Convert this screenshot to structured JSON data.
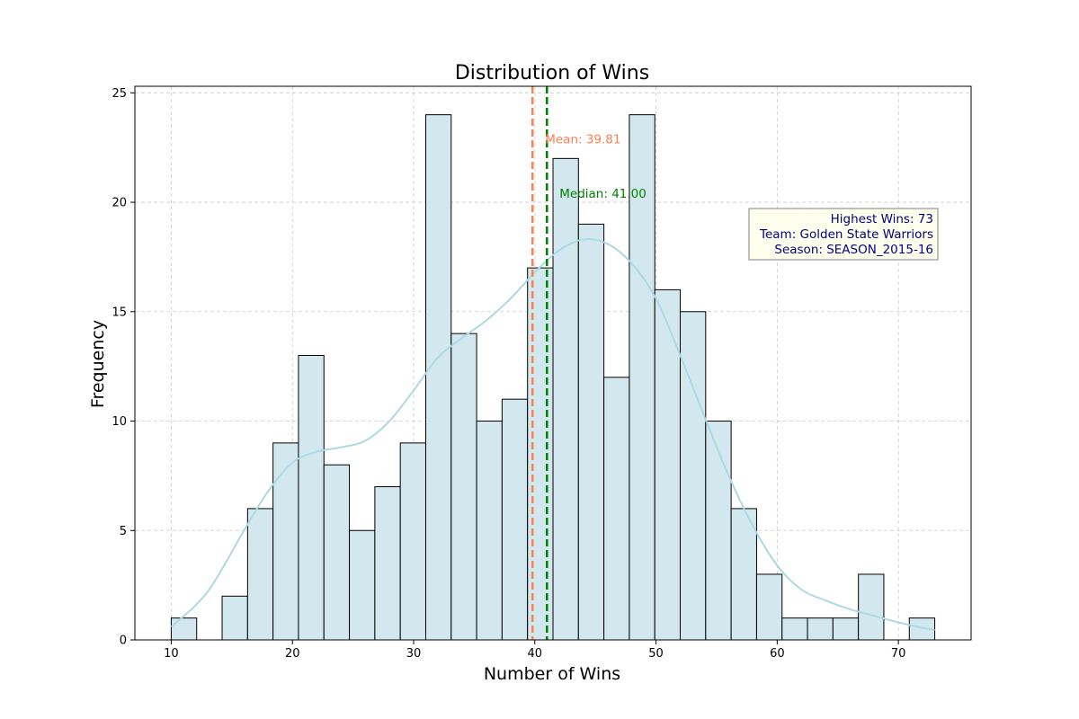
{
  "chart_data": {
    "type": "bar",
    "title": "Distribution of Wins",
    "xlabel": "Number of Wins",
    "ylabel": "Frequency",
    "xlim": [
      7,
      76
    ],
    "ylim": [
      0,
      25.3
    ],
    "xticks": [
      10,
      20,
      30,
      40,
      50,
      60,
      70
    ],
    "yticks": [
      0,
      5,
      10,
      15,
      20,
      25
    ],
    "grid": true,
    "bin_start": 10,
    "bin_width": 2.1,
    "bins": [
      {
        "x0": 10.0,
        "x1": 12.1,
        "count": 1
      },
      {
        "x0": 12.1,
        "x1": 14.2,
        "count": 0
      },
      {
        "x0": 14.2,
        "x1": 16.3,
        "count": 2
      },
      {
        "x0": 16.3,
        "x1": 18.4,
        "count": 6
      },
      {
        "x0": 18.4,
        "x1": 20.5,
        "count": 9
      },
      {
        "x0": 20.5,
        "x1": 22.6,
        "count": 13
      },
      {
        "x0": 22.6,
        "x1": 24.7,
        "count": 8
      },
      {
        "x0": 24.7,
        "x1": 26.8,
        "count": 5
      },
      {
        "x0": 26.8,
        "x1": 28.9,
        "count": 7
      },
      {
        "x0": 28.9,
        "x1": 31.0,
        "count": 9
      },
      {
        "x0": 31.0,
        "x1": 33.1,
        "count": 24
      },
      {
        "x0": 33.1,
        "x1": 35.2,
        "count": 14
      },
      {
        "x0": 35.2,
        "x1": 37.3,
        "count": 10
      },
      {
        "x0": 37.3,
        "x1": 39.4,
        "count": 11
      },
      {
        "x0": 39.4,
        "x1": 41.5,
        "count": 17
      },
      {
        "x0": 41.5,
        "x1": 43.6,
        "count": 22
      },
      {
        "x0": 43.6,
        "x1": 45.7,
        "count": 19
      },
      {
        "x0": 45.7,
        "x1": 47.8,
        "count": 12
      },
      {
        "x0": 47.8,
        "x1": 49.9,
        "count": 24
      },
      {
        "x0": 49.9,
        "x1": 52.0,
        "count": 16
      },
      {
        "x0": 52.0,
        "x1": 54.1,
        "count": 15
      },
      {
        "x0": 54.1,
        "x1": 56.2,
        "count": 10
      },
      {
        "x0": 56.2,
        "x1": 58.3,
        "count": 6
      },
      {
        "x0": 58.3,
        "x1": 60.4,
        "count": 3
      },
      {
        "x0": 60.4,
        "x1": 62.5,
        "count": 1
      },
      {
        "x0": 62.5,
        "x1": 64.6,
        "count": 1
      },
      {
        "x0": 64.6,
        "x1": 66.7,
        "count": 1
      },
      {
        "x0": 66.7,
        "x1": 68.8,
        "count": 3
      },
      {
        "x0": 68.8,
        "x1": 70.9,
        "count": 0
      },
      {
        "x0": 70.9,
        "x1": 73.0,
        "count": 1
      }
    ],
    "kde": {
      "x": [
        10,
        13,
        16,
        18,
        20,
        22,
        24,
        26,
        28,
        30,
        32,
        34,
        36,
        38,
        40,
        42,
        44,
        46,
        48,
        50,
        52,
        54,
        56,
        58,
        60,
        62,
        64,
        66,
        68,
        70,
        72,
        73
      ],
      "y": [
        0.6,
        2.2,
        5.0,
        6.8,
        8.1,
        8.6,
        8.8,
        9.1,
        10.0,
        11.4,
        12.9,
        13.8,
        14.6,
        15.6,
        16.8,
        17.8,
        18.3,
        18.1,
        17.2,
        15.6,
        13.0,
        10.2,
        7.5,
        5.2,
        3.4,
        2.3,
        1.8,
        1.4,
        1.1,
        0.8,
        0.55,
        0.45
      ]
    },
    "mean": {
      "value": 39.81,
      "label": "Mean: 39.81",
      "color": "#ff7f50"
    },
    "median": {
      "value": 41.0,
      "label": "Median: 41.00",
      "color": "#008000"
    },
    "info_box": {
      "lines": [
        "Highest Wins: 73",
        "Team: Golden State Warriors",
        "Season: SEASON_2015-16"
      ],
      "text_color": "#000080",
      "background": "#ffffee"
    },
    "colors": {
      "bar_fill": "#d3e8ee",
      "bar_edge": "#000000",
      "kde_line": "#add8e6",
      "grid": "#cccccc"
    }
  }
}
